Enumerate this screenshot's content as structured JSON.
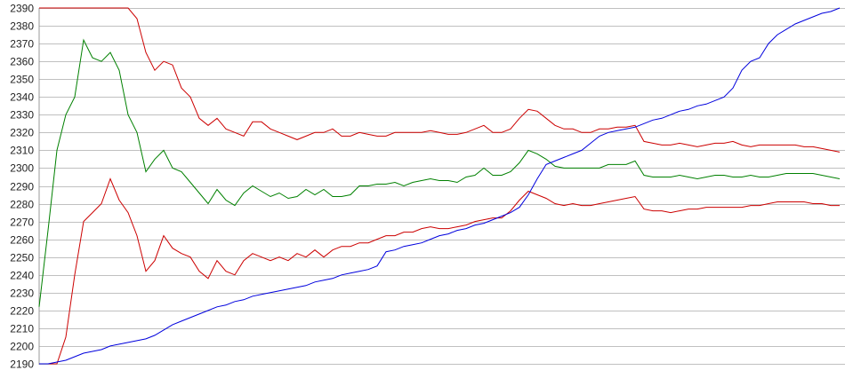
{
  "chart_data": {
    "type": "line",
    "title": "",
    "xlabel": "",
    "ylabel": "",
    "ylim": [
      2190,
      2390
    ],
    "yticks": [
      "2190",
      "2200",
      "2210",
      "2220",
      "2230",
      "2240",
      "2250",
      "2260",
      "2270",
      "2280",
      "2290",
      "2300",
      "2310",
      "2320",
      "2330",
      "2340",
      "2350",
      "2360",
      "2370",
      "2380",
      "2390"
    ],
    "grid": "horizontal",
    "legend": "none",
    "series": [
      {
        "color": "#cc0000",
        "values": [
          2390,
          2390,
          2390,
          2390,
          2390,
          2390,
          2390,
          2390,
          2390,
          2390,
          2390,
          2384,
          2365,
          2355,
          2360,
          2358,
          2345,
          2340,
          2328,
          2324,
          2328,
          2322,
          2320,
          2318,
          2326,
          2326,
          2322,
          2320,
          2318,
          2316,
          2318,
          2320,
          2320,
          2322,
          2318,
          2318,
          2320,
          2319,
          2318,
          2318,
          2320,
          2320,
          2320,
          2320,
          2321,
          2320,
          2319,
          2319,
          2320,
          2322,
          2324,
          2320,
          2320,
          2322,
          2328,
          2333,
          2332,
          2328,
          2324,
          2322,
          2322,
          2320,
          2320,
          2322,
          2322,
          2323,
          2323,
          2324,
          2315,
          2314,
          2313,
          2313,
          2314,
          2313,
          2312,
          2313,
          2314,
          2314,
          2315,
          2313,
          2312,
          2313,
          2313,
          2313,
          2313,
          2313,
          2312,
          2312,
          2311,
          2310,
          2309
        ]
      },
      {
        "color": "#008000",
        "values": [
          2222,
          2265,
          2310,
          2330,
          2340,
          2372,
          2362,
          2360,
          2365,
          2355,
          2330,
          2320,
          2298,
          2305,
          2310,
          2300,
          2298,
          2292,
          2286,
          2280,
          2288,
          2282,
          2279,
          2286,
          2290,
          2287,
          2284,
          2286,
          2283,
          2284,
          2288,
          2285,
          2288,
          2284,
          2284,
          2285,
          2290,
          2290,
          2291,
          2291,
          2292,
          2290,
          2292,
          2293,
          2294,
          2293,
          2293,
          2292,
          2295,
          2296,
          2300,
          2296,
          2296,
          2298,
          2303,
          2310,
          2308,
          2305,
          2301,
          2300,
          2300,
          2300,
          2300,
          2300,
          2302,
          2302,
          2302,
          2304,
          2296,
          2295,
          2295,
          2295,
          2296,
          2295,
          2294,
          2295,
          2296,
          2296,
          2295,
          2295,
          2296,
          2295,
          2295,
          2296,
          2297,
          2297,
          2297,
          2297,
          2296,
          2295,
          2294
        ]
      },
      {
        "color": "#cc0000",
        "values": [
          2190,
          2190,
          2190,
          2205,
          2240,
          2270,
          2275,
          2280,
          2294,
          2282,
          2275,
          2262,
          2242,
          2248,
          2262,
          2255,
          2252,
          2250,
          2242,
          2238,
          2248,
          2242,
          2240,
          2248,
          2252,
          2250,
          2248,
          2250,
          2248,
          2252,
          2250,
          2254,
          2250,
          2254,
          2256,
          2256,
          2258,
          2258,
          2260,
          2262,
          2262,
          2264,
          2264,
          2266,
          2267,
          2266,
          2266,
          2267,
          2268,
          2270,
          2271,
          2272,
          2272,
          2276,
          2282,
          2287,
          2285,
          2283,
          2280,
          2279,
          2280,
          2279,
          2279,
          2280,
          2281,
          2282,
          2283,
          2284,
          2277,
          2276,
          2276,
          2275,
          2276,
          2277,
          2277,
          2278,
          2278,
          2278,
          2278,
          2278,
          2279,
          2279,
          2280,
          2281,
          2281,
          2281,
          2281,
          2280,
          2280,
          2279,
          2279
        ]
      },
      {
        "color": "#0000dd",
        "values": [
          2190,
          2190,
          2191,
          2192,
          2194,
          2196,
          2197,
          2198,
          2200,
          2201,
          2202,
          2203,
          2204,
          2206,
          2209,
          2212,
          2214,
          2216,
          2218,
          2220,
          2222,
          2223,
          2225,
          2226,
          2228,
          2229,
          2230,
          2231,
          2232,
          2233,
          2234,
          2236,
          2237,
          2238,
          2240,
          2241,
          2242,
          2243,
          2245,
          2253,
          2254,
          2256,
          2257,
          2258,
          2260,
          2262,
          2263,
          2265,
          2266,
          2268,
          2269,
          2271,
          2273,
          2275,
          2278,
          2285,
          2294,
          2302,
          2304,
          2306,
          2308,
          2310,
          2314,
          2318,
          2320,
          2321,
          2322,
          2323,
          2325,
          2327,
          2328,
          2330,
          2332,
          2333,
          2335,
          2336,
          2338,
          2340,
          2345,
          2355,
          2360,
          2362,
          2370,
          2375,
          2378,
          2381,
          2383,
          2385,
          2387,
          2388,
          2390
        ]
      }
    ]
  }
}
